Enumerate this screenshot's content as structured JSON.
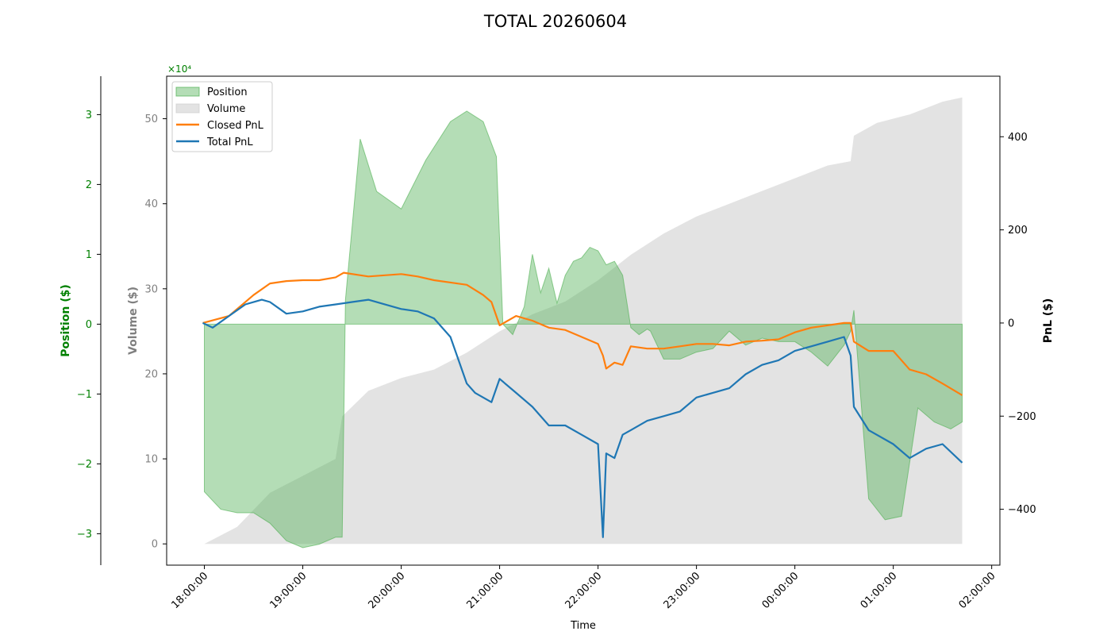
{
  "chart_data": {
    "type": "line",
    "title": "TOTAL 20260604",
    "xlabel": "Time",
    "x_ticks": [
      "18:00:00",
      "19:00:00",
      "20:00:00",
      "21:00:00",
      "22:00:00",
      "23:00:00",
      "00:00:00",
      "01:00:00",
      "02:00:00"
    ],
    "x_range": [
      "17:37",
      "02:05"
    ],
    "legend_position": "top-left",
    "axes": {
      "position": {
        "label": "Position ($)",
        "color": "#008000",
        "range": [
          -34500,
          35500
        ],
        "ticks": [
          -3,
          -2,
          -1,
          0,
          1,
          2,
          3
        ],
        "multiplier": "×10⁴"
      },
      "volume": {
        "label": "Volume ($)",
        "color": "#808080",
        "range": [
          -2.5,
          55
        ],
        "ticks": [
          0,
          10,
          20,
          30,
          40,
          50
        ]
      },
      "pnl": {
        "label": "PnL ($)",
        "color": "#000000",
        "range": [
          -520,
          530
        ],
        "ticks": [
          -400,
          -200,
          0,
          200,
          400
        ]
      }
    },
    "series": [
      {
        "name": "Position",
        "kind": "area",
        "axis": "position",
        "color": "#4caf50",
        "x": [
          "18:00",
          "18:10",
          "18:20",
          "18:30",
          "18:40",
          "18:50",
          "19:00",
          "19:10",
          "19:20",
          "19:24",
          "19:26",
          "19:35",
          "19:45",
          "20:00",
          "20:15",
          "20:30",
          "20:40",
          "20:50",
          "20:58",
          "21:02",
          "21:08",
          "21:15",
          "21:20",
          "21:25",
          "21:30",
          "21:35",
          "21:40",
          "21:45",
          "21:50",
          "21:55",
          "22:00",
          "22:05",
          "22:10",
          "22:15",
          "22:20",
          "22:25",
          "22:30",
          "22:32",
          "22:40",
          "22:50",
          "23:00",
          "23:10",
          "23:20",
          "23:30",
          "23:40",
          "23:50",
          "00:00",
          "00:10",
          "00:20",
          "00:30",
          "00:34",
          "00:36",
          "00:45",
          "00:55",
          "01:05",
          "01:15",
          "01:25",
          "01:35",
          "01:42"
        ],
        "y": [
          -24000,
          -26500,
          -27000,
          -27000,
          -28500,
          -31000,
          -32000,
          -31500,
          -30500,
          -30500,
          3500,
          26500,
          19000,
          16500,
          23500,
          29000,
          30500,
          29000,
          24000,
          0,
          -1500,
          2500,
          10000,
          4500,
          8000,
          3000,
          7000,
          9000,
          9500,
          11000,
          10500,
          8500,
          9000,
          7000,
          -500,
          -1500,
          -700,
          -1000,
          -5000,
          -5000,
          -4000,
          -3500,
          -1000,
          -3000,
          -2000,
          -2500,
          -2500,
          -4000,
          -6000,
          -3000,
          -1000,
          2000,
          -25000,
          -28000,
          -27500,
          -12000,
          -14000,
          -15000,
          -14000
        ]
      },
      {
        "name": "Volume",
        "kind": "area",
        "axis": "volume",
        "color": "#cccccc",
        "x": [
          "18:00",
          "18:20",
          "18:40",
          "19:00",
          "19:20",
          "19:24",
          "19:40",
          "20:00",
          "20:20",
          "20:40",
          "21:00",
          "21:20",
          "21:40",
          "22:00",
          "22:20",
          "22:40",
          "23:00",
          "23:20",
          "23:40",
          "00:00",
          "00:20",
          "00:34",
          "00:36",
          "00:50",
          "01:10",
          "01:30",
          "01:42"
        ],
        "y": [
          0,
          2,
          6,
          8,
          10,
          15,
          18,
          19.5,
          20.5,
          22.5,
          25,
          27,
          28.5,
          31,
          34,
          36.5,
          38.5,
          40,
          41.5,
          43,
          44.5,
          45,
          48,
          49.5,
          50.5,
          52,
          52.5
        ]
      },
      {
        "name": "Closed PnL",
        "kind": "line",
        "axis": "pnl",
        "color": "#ff7f0e",
        "x": [
          "17:59",
          "18:15",
          "18:30",
          "18:40",
          "18:50",
          "19:00",
          "19:10",
          "19:20",
          "19:25",
          "19:40",
          "20:00",
          "20:10",
          "20:20",
          "20:40",
          "20:50",
          "20:55",
          "21:00",
          "21:10",
          "21:20",
          "21:30",
          "21:40",
          "22:00",
          "22:03",
          "22:05",
          "22:10",
          "22:15",
          "22:20",
          "22:30",
          "22:40",
          "22:50",
          "23:00",
          "23:10",
          "23:20",
          "23:30",
          "23:40",
          "23:50",
          "00:00",
          "00:10",
          "00:20",
          "00:30",
          "00:34",
          "00:36",
          "00:45",
          "01:00",
          "01:10",
          "01:20",
          "01:30",
          "01:42"
        ],
        "y": [
          0,
          15,
          60,
          85,
          90,
          92,
          92,
          98,
          108,
          100,
          105,
          100,
          92,
          82,
          60,
          45,
          -5,
          15,
          5,
          -10,
          -15,
          -45,
          -70,
          -98,
          -85,
          -90,
          -50,
          -55,
          -55,
          -50,
          -45,
          -45,
          -48,
          -40,
          -38,
          -35,
          -20,
          -10,
          -5,
          0,
          0,
          -40,
          -60,
          -60,
          -100,
          -110,
          -130,
          -155
        ]
      },
      {
        "name": "Total PnL",
        "kind": "line",
        "axis": "pnl",
        "color": "#1f77b4",
        "x": [
          "17:59",
          "18:05",
          "18:15",
          "18:25",
          "18:35",
          "18:40",
          "18:50",
          "19:00",
          "19:10",
          "19:20",
          "19:30",
          "19:40",
          "20:00",
          "20:10",
          "20:20",
          "20:30",
          "20:40",
          "20:45",
          "20:55",
          "21:00",
          "21:10",
          "21:20",
          "21:30",
          "21:40",
          "21:50",
          "22:00",
          "22:03",
          "22:05",
          "22:10",
          "22:15",
          "22:20",
          "22:30",
          "22:40",
          "22:50",
          "23:00",
          "23:10",
          "23:20",
          "23:30",
          "23:40",
          "23:50",
          "00:00",
          "00:10",
          "00:20",
          "00:30",
          "00:34",
          "00:36",
          "00:45",
          "01:00",
          "01:10",
          "01:20",
          "01:30",
          "01:42"
        ],
        "y": [
          0,
          -10,
          15,
          40,
          50,
          45,
          20,
          25,
          35,
          40,
          45,
          50,
          30,
          25,
          10,
          -30,
          -130,
          -150,
          -170,
          -120,
          -150,
          -180,
          -220,
          -220,
          -240,
          -260,
          -460,
          -280,
          -290,
          -240,
          -230,
          -210,
          -200,
          -190,
          -160,
          -150,
          -140,
          -110,
          -90,
          -80,
          -60,
          -50,
          -40,
          -30,
          -70,
          -180,
          -230,
          -260,
          -290,
          -270,
          -260,
          -300
        ]
      }
    ]
  }
}
